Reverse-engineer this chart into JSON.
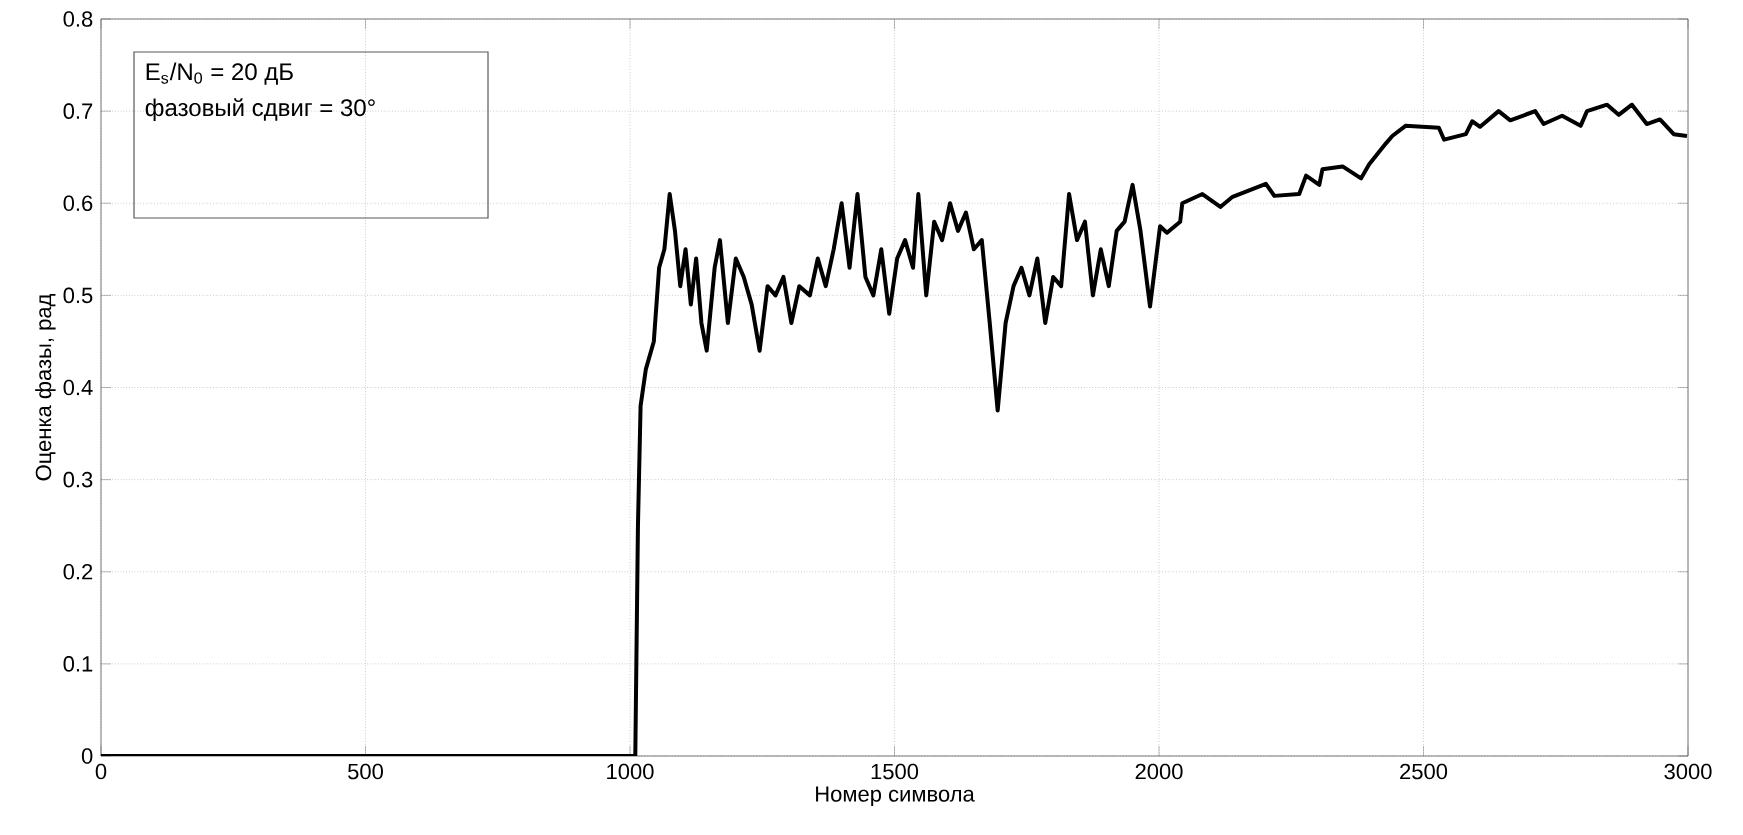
{
  "chart_data": {
    "type": "line",
    "xlabel": "Номер символа",
    "ylabel": "Оценка фазы, рад",
    "annotations": [
      "E$_{s}$/N$_{0}$ = 20 дБ",
      "фазовый сдвиг = 30°"
    ],
    "xlim": [
      0,
      3000
    ],
    "ylim": [
      0,
      0.8
    ],
    "xticks": [
      0,
      500,
      1000,
      1500,
      2000,
      2500,
      3000
    ],
    "yticks": [
      0,
      0.1,
      0.2,
      0.3,
      0.4,
      0.5,
      0.6,
      0.7,
      0.8
    ],
    "grid": true,
    "series": [
      {
        "color": "#000000",
        "x": [
          0,
          500,
          1005,
          1010,
          1015,
          1020,
          1030,
          1045,
          1055,
          1065,
          1075,
          1085,
          1095,
          1105,
          1115,
          1125,
          1135,
          1145,
          1160,
          1170,
          1185,
          1200,
          1215,
          1230,
          1245,
          1260,
          1275,
          1290,
          1305,
          1320,
          1340,
          1355,
          1370,
          1385,
          1400,
          1415,
          1430,
          1445,
          1460,
          1475,
          1490,
          1505,
          1520,
          1535,
          1545,
          1560,
          1575,
          1590,
          1605,
          1620,
          1635,
          1650,
          1665,
          1680,
          1695,
          1710,
          1725,
          1740,
          1755,
          1770,
          1785,
          1800,
          1815,
          1830,
          1845,
          1860,
          1875,
          1890,
          1905,
          1920,
          1935,
          1950,
          1965,
          1983,
          2002,
          2015,
          2040,
          2044,
          2082,
          2116,
          2139,
          2202,
          2218,
          2265,
          2278,
          2303,
          2309,
          2347,
          2382,
          2397,
          2429,
          2441,
          2466,
          2529,
          2539,
          2580,
          2592,
          2607,
          2642,
          2664,
          2711,
          2727,
          2762,
          2797,
          2809,
          2847,
          2869,
          2894,
          2922,
          2947,
          2973,
          2998
        ],
        "values": [
          0,
          0,
          0,
          0,
          0.25,
          0.38,
          0.42,
          0.45,
          0.53,
          0.55,
          0.61,
          0.57,
          0.51,
          0.55,
          0.49,
          0.54,
          0.47,
          0.44,
          0.53,
          0.56,
          0.47,
          0.54,
          0.52,
          0.49,
          0.44,
          0.51,
          0.5,
          0.52,
          0.47,
          0.51,
          0.5,
          0.54,
          0.51,
          0.55,
          0.6,
          0.53,
          0.61,
          0.52,
          0.5,
          0.55,
          0.48,
          0.54,
          0.56,
          0.53,
          0.61,
          0.5,
          0.58,
          0.56,
          0.6,
          0.57,
          0.59,
          0.55,
          0.56,
          0.47,
          0.375,
          0.47,
          0.51,
          0.53,
          0.5,
          0.54,
          0.47,
          0.52,
          0.51,
          0.61,
          0.56,
          0.58,
          0.5,
          0.55,
          0.51,
          0.57,
          0.58,
          0.62,
          0.57,
          0.488,
          0.575,
          0.568,
          0.58,
          0.6,
          0.61,
          0.596,
          0.607,
          0.621,
          0.608,
          0.61,
          0.63,
          0.62,
          0.637,
          0.64,
          0.627,
          0.642,
          0.665,
          0.673,
          0.684,
          0.682,
          0.669,
          0.675,
          0.689,
          0.683,
          0.7,
          0.69,
          0.7,
          0.686,
          0.695,
          0.684,
          0.7,
          0.707,
          0.696,
          0.707,
          0.686,
          0.691,
          0.675,
          0.673
        ]
      }
    ]
  }
}
